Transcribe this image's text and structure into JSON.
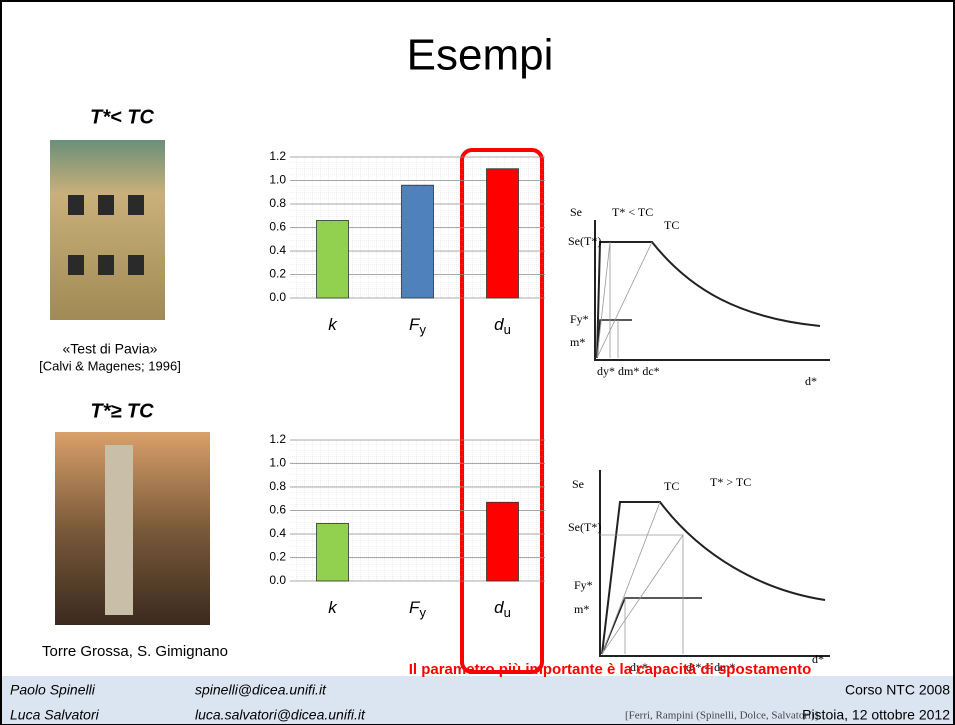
{
  "title": "Esempi",
  "cases": [
    {
      "label": "T*< TC",
      "caption": [
        "«Test di Pavia»",
        "[Calvi & Magenes; 1996]"
      ]
    },
    {
      "label": "T*≥ TC",
      "caption": [
        "Torre Grossa, S. Gimignano"
      ]
    }
  ],
  "chart_data": [
    {
      "type": "bar",
      "categories": [
        "k",
        "F",
        "d"
      ],
      "category_subscripts": [
        null,
        "y",
        "u"
      ],
      "values": [
        0.66,
        0.96,
        1.1
      ],
      "colors": [
        "#92d050",
        "#4f81bd",
        "#ff0000"
      ],
      "ylim": [
        0,
        1.2
      ],
      "yticks": [
        {
          "value": 0,
          "label": "0.0"
        },
        0.2,
        0.4,
        0.6,
        0.8,
        {
          "value": 1,
          "label": "1.0"
        },
        1.2
      ],
      "grid": true
    },
    {
      "type": "bar",
      "categories": [
        "k",
        "F",
        "d"
      ],
      "category_subscripts": [
        null,
        "y",
        "u"
      ],
      "values": [
        0.49,
        0,
        0.67
      ],
      "colors": [
        "#92d050",
        "#4f81bd",
        "#ff0000"
      ],
      "ylim": [
        0,
        1.2
      ],
      "yticks": [
        {
          "value": 0,
          "label": "0.0"
        },
        0.2,
        0.4,
        0.6,
        0.8,
        {
          "value": 1,
          "label": "1.0"
        },
        1.2
      ],
      "grid": true
    }
  ],
  "diagrams": [
    {
      "labels": [
        "Se",
        "T* < TC",
        "TC",
        "Se(T*)",
        "Fy*",
        "m*",
        "dy* dm* dc*",
        "d*"
      ]
    },
    {
      "labels": [
        "Se",
        "TC",
        "T* > TC",
        "Se(T*)",
        "Fy*",
        "m*",
        "dy*",
        "dt* = dm*",
        "d*"
      ]
    }
  ],
  "highlight": "Il parametro più importante è la capacità di spostamento",
  "footer": {
    "authors": [
      "Paolo Spinelli",
      "Luca Salvatori"
    ],
    "emails": [
      "spinelli@dicea.unifi.it",
      "luca.salvatori@dicea.unifi.it"
    ],
    "course": "Corso NTC 2008",
    "place": "Pistoia, 12 ottobre 2012",
    "source": "[Ferri, Rampini (Spinelli, Dolce, Salvatori)]"
  }
}
